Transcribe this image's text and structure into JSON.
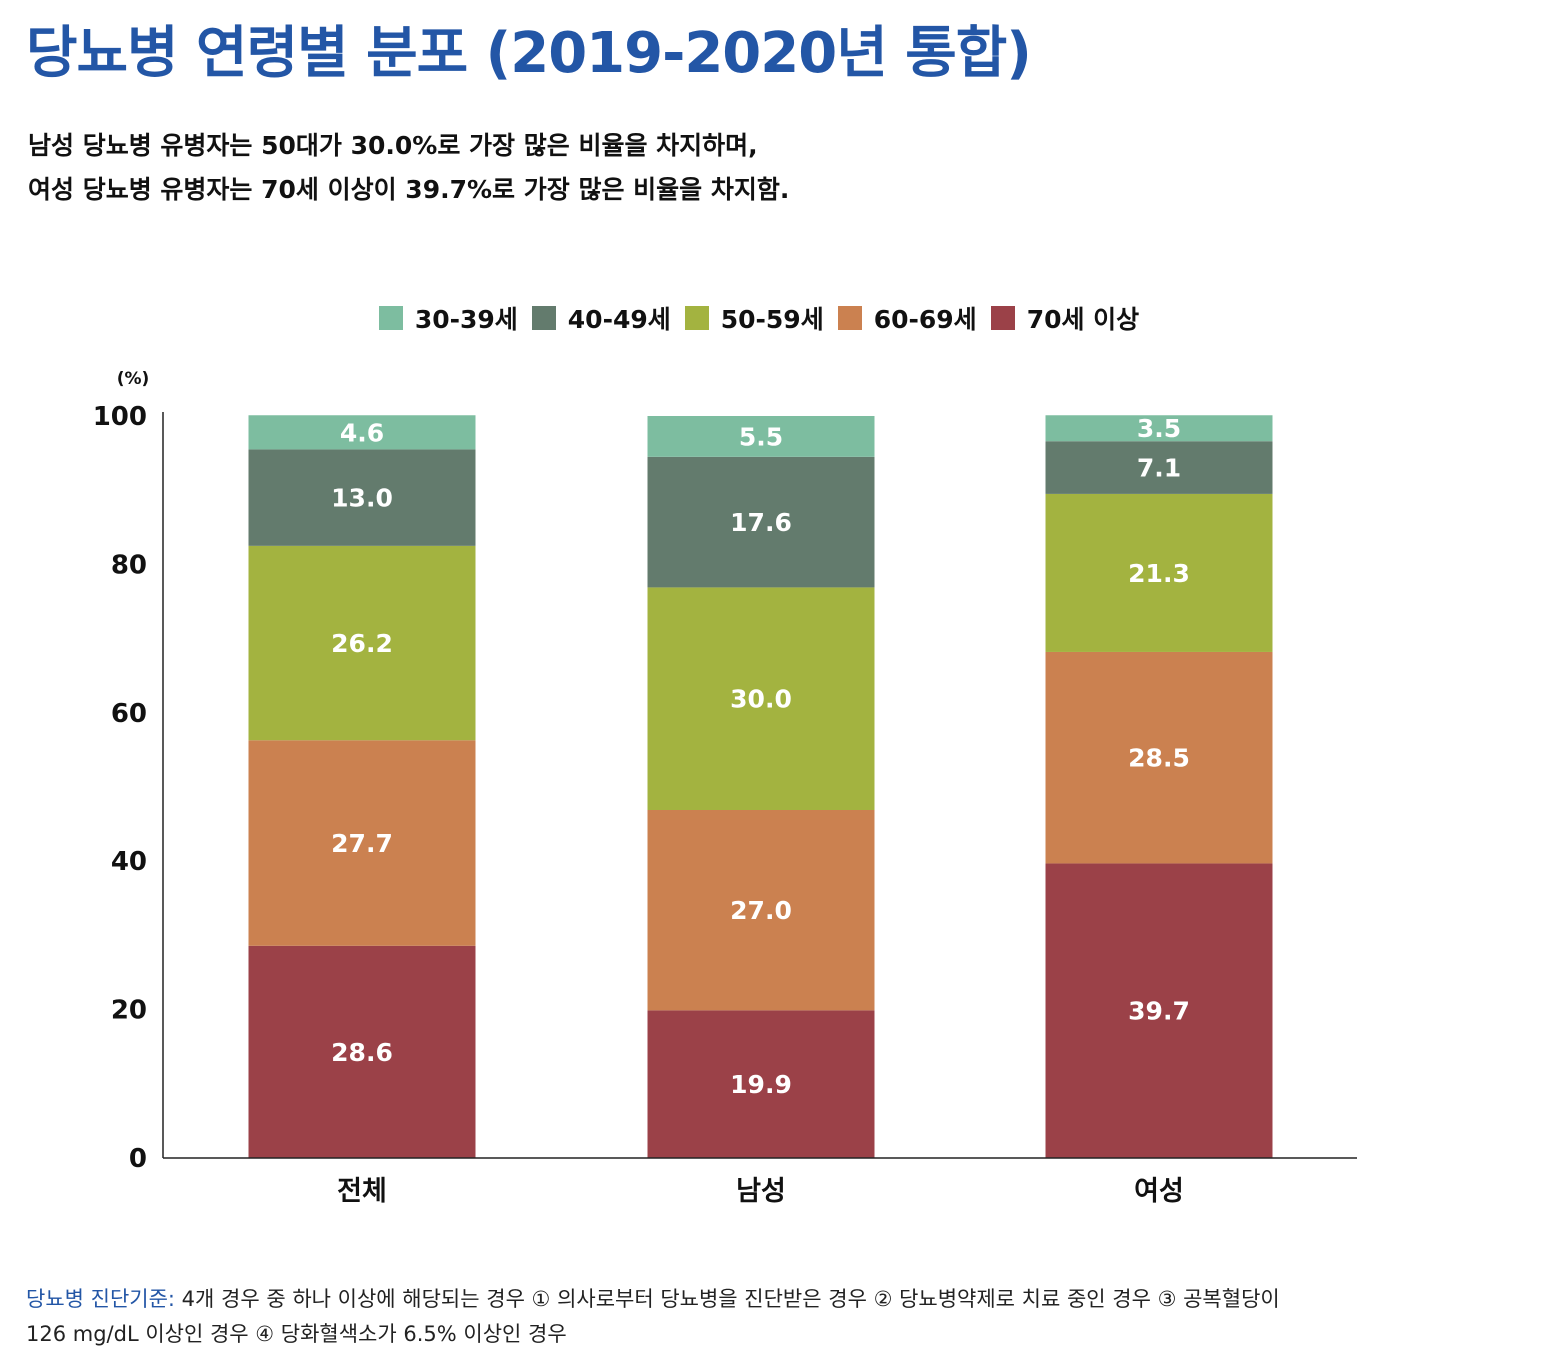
{
  "title": "당뇨병 연령별 분포 (2019-2020년 통합)",
  "subtitle": {
    "line1": "남성 당뇨병 유병자는 50대가 30.0%로 가장 많은 비율을 차지하며,",
    "line2": "여성 당뇨병 유병자는 70세 이상이 39.7%로 가장 많은 비율을 차지함."
  },
  "chart_data": {
    "type": "bar",
    "stacked": true,
    "categories": [
      "전체",
      "남성",
      "여성"
    ],
    "series": [
      {
        "name": "70세 이상",
        "color": "#9b4148",
        "values": [
          28.6,
          19.9,
          39.7
        ],
        "labels": [
          "28.6",
          "19.9",
          "39.7"
        ]
      },
      {
        "name": "60-69세",
        "color": "#cb8150",
        "values": [
          27.7,
          27.0,
          28.5
        ],
        "labels": [
          "27.7",
          "27.0",
          "28.5"
        ]
      },
      {
        "name": "50-59세",
        "color": "#a3b340",
        "values": [
          26.2,
          30.0,
          21.3
        ],
        "labels": [
          "26.2",
          "30.0",
          "21.3"
        ]
      },
      {
        "name": "40-49세",
        "color": "#637b6d",
        "values": [
          13.0,
          17.6,
          7.1
        ],
        "labels": [
          "13.0",
          "17.6",
          "7.1"
        ]
      },
      {
        "name": "30-39세",
        "color": "#7dbda0",
        "values": [
          4.6,
          5.5,
          3.5
        ],
        "labels": [
          "4.6",
          "5.5",
          "3.5"
        ]
      }
    ],
    "legend_order": [
      "30-39세",
      "40-49세",
      "50-59세",
      "60-69세",
      "70세 이상"
    ],
    "unit_label": "(%)",
    "ylim": [
      0,
      100
    ],
    "yticks": [
      0,
      20,
      40,
      60,
      80,
      100
    ],
    "legend_position": "top",
    "grid": false
  },
  "footnote": {
    "label": "당뇨병 진단기준:",
    "line1_text": " 4개 경우 중 하나 이상에 해당되는 경우 ① 의사로부터 당뇨병을 진단받은 경우 ② 당뇨병약제로 치료 중인 경우 ③ 공복혈당이",
    "line2": "126 mg/dL 이상인 경우 ④ 당화혈색소가 6.5% 이상인 경우"
  }
}
